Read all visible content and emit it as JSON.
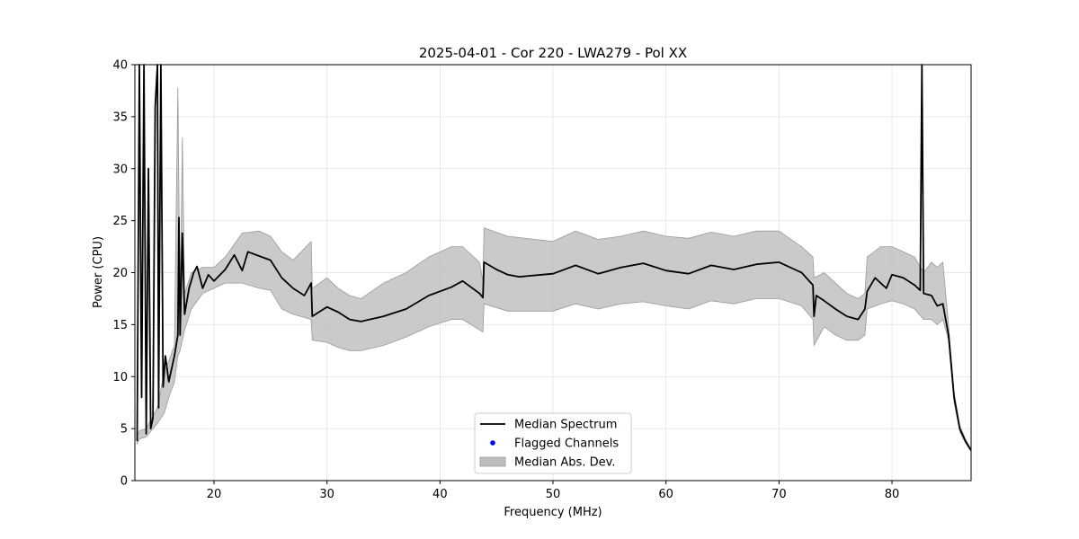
{
  "chart_data": {
    "type": "line",
    "title": "2025-04-01 - Cor 220 - LWA279 - Pol XX",
    "xlabel": "Frequency (MHz)",
    "ylabel": "Power (CPU)",
    "xlim": [
      13.0,
      87.0
    ],
    "ylim": [
      0,
      40
    ],
    "xticks": [
      20,
      30,
      40,
      50,
      60,
      70,
      80
    ],
    "yticks": [
      0,
      5,
      10,
      15,
      20,
      25,
      30,
      35,
      40
    ],
    "grid": true,
    "legend": {
      "position": "lower center",
      "entries": [
        {
          "label": "Median Spectrum",
          "kind": "line",
          "color": "#000000"
        },
        {
          "label": "Flagged Channels",
          "kind": "marker",
          "color": "#0000ff"
        },
        {
          "label": "Median Abs. Dev.",
          "kind": "band",
          "color": "#bdbdbd"
        }
      ]
    },
    "series": [
      {
        "name": "Median Spectrum",
        "color": "#000000",
        "points": [
          [
            13.2,
            3.8
          ],
          [
            13.4,
            40
          ],
          [
            13.6,
            8
          ],
          [
            13.8,
            40
          ],
          [
            14.0,
            4.5
          ],
          [
            14.2,
            30
          ],
          [
            14.4,
            5
          ],
          [
            14.6,
            6
          ],
          [
            14.8,
            36
          ],
          [
            15.0,
            40
          ],
          [
            15.1,
            7
          ],
          [
            15.3,
            40
          ],
          [
            15.5,
            9
          ],
          [
            15.7,
            12
          ],
          [
            16.0,
            9.5
          ],
          [
            16.5,
            12
          ],
          [
            16.8,
            14
          ],
          [
            16.9,
            25.3
          ],
          [
            17.0,
            14
          ],
          [
            17.2,
            23.8
          ],
          [
            17.4,
            16
          ],
          [
            17.8,
            18.5
          ],
          [
            18.2,
            20
          ],
          [
            18.5,
            20.6
          ],
          [
            19.0,
            18.5
          ],
          [
            19.5,
            19.8
          ],
          [
            20.0,
            19.2
          ],
          [
            21.0,
            20.3
          ],
          [
            21.8,
            21.7
          ],
          [
            22.5,
            20.2
          ],
          [
            23.0,
            22.0
          ],
          [
            24.0,
            21.6
          ],
          [
            25.0,
            21.2
          ],
          [
            26.0,
            19.5
          ],
          [
            27.0,
            18.5
          ],
          [
            28.0,
            17.8
          ],
          [
            28.6,
            19.0
          ],
          [
            28.7,
            15.8
          ],
          [
            30.0,
            16.7
          ],
          [
            31.0,
            16.2
          ],
          [
            32.0,
            15.5
          ],
          [
            33.0,
            15.3
          ],
          [
            35.0,
            15.8
          ],
          [
            37.0,
            16.5
          ],
          [
            39.0,
            17.8
          ],
          [
            41.0,
            18.6
          ],
          [
            42.0,
            19.2
          ],
          [
            43.5,
            18.0
          ],
          [
            43.8,
            17.6
          ],
          [
            43.9,
            21.0
          ],
          [
            45.0,
            20.3
          ],
          [
            46.0,
            19.8
          ],
          [
            47.0,
            19.6
          ],
          [
            50.0,
            19.9
          ],
          [
            52.0,
            20.7
          ],
          [
            54.0,
            19.9
          ],
          [
            56.0,
            20.5
          ],
          [
            58.0,
            20.9
          ],
          [
            60.0,
            20.2
          ],
          [
            62.0,
            19.9
          ],
          [
            64.0,
            20.7
          ],
          [
            66.0,
            20.3
          ],
          [
            68.0,
            20.8
          ],
          [
            70.0,
            21.0
          ],
          [
            72.0,
            20.0
          ],
          [
            73.0,
            18.8
          ],
          [
            73.1,
            15.8
          ],
          [
            73.3,
            17.8
          ],
          [
            74.0,
            17.3
          ],
          [
            75.0,
            16.5
          ],
          [
            76.0,
            15.8
          ],
          [
            77.0,
            15.5
          ],
          [
            77.6,
            16.5
          ],
          [
            77.8,
            18.2
          ],
          [
            78.5,
            19.5
          ],
          [
            79.5,
            18.5
          ],
          [
            80.0,
            19.8
          ],
          [
            81.0,
            19.5
          ],
          [
            82.0,
            18.8
          ],
          [
            82.5,
            18.3
          ],
          [
            82.65,
            40
          ],
          [
            82.8,
            18.0
          ],
          [
            83.5,
            17.8
          ],
          [
            84.0,
            16.8
          ],
          [
            84.5,
            17.0
          ],
          [
            85.0,
            14.0
          ],
          [
            85.5,
            8.0
          ],
          [
            86.0,
            5.0
          ],
          [
            86.5,
            3.8
          ],
          [
            87.0,
            2.9
          ]
        ]
      }
    ],
    "band": {
      "name": "Median Abs. Dev.",
      "color": "#bdbdbd",
      "points": [
        [
          13.2,
          3.5,
          4.2
        ],
        [
          13.4,
          4.0,
          4.8
        ],
        [
          14.0,
          4.2,
          5.0
        ],
        [
          15.0,
          5.5,
          7.0
        ],
        [
          15.6,
          6.5,
          10.5
        ],
        [
          16.0,
          8.0,
          11.5
        ],
        [
          16.5,
          9.5,
          13.0
        ],
        [
          16.8,
          12.0,
          37.8
        ],
        [
          17.0,
          12.5,
          16.0
        ],
        [
          17.2,
          13.5,
          33.0
        ],
        [
          17.4,
          14.5,
          18.0
        ],
        [
          18.0,
          16.5,
          20.0
        ],
        [
          19.0,
          18.0,
          20.5
        ],
        [
          20.0,
          18.5,
          20.5
        ],
        [
          21.0,
          19.0,
          21.5
        ],
        [
          22.5,
          19.0,
          23.8
        ],
        [
          24.0,
          18.5,
          24.0
        ],
        [
          25.0,
          18.3,
          23.5
        ],
        [
          26.0,
          16.5,
          22.0
        ],
        [
          27.0,
          16.0,
          21.2
        ],
        [
          28.6,
          15.5,
          23.0
        ],
        [
          28.7,
          13.5,
          18.5
        ],
        [
          30.0,
          13.3,
          19.5
        ],
        [
          31.0,
          12.8,
          18.5
        ],
        [
          32.0,
          12.5,
          17.8
        ],
        [
          33.0,
          12.5,
          17.5
        ],
        [
          35.0,
          13.0,
          19.0
        ],
        [
          37.0,
          13.8,
          20.0
        ],
        [
          39.0,
          14.8,
          21.5
        ],
        [
          41.0,
          15.5,
          22.5
        ],
        [
          42.0,
          15.5,
          22.5
        ],
        [
          43.5,
          14.5,
          21.0
        ],
        [
          43.8,
          14.3,
          19.2
        ],
        [
          43.9,
          17.0,
          24.3
        ],
        [
          46.0,
          16.3,
          23.5
        ],
        [
          50.0,
          16.3,
          23.0
        ],
        [
          52.0,
          17.0,
          24.0
        ],
        [
          54.0,
          16.5,
          23.2
        ],
        [
          56.0,
          17.0,
          23.5
        ],
        [
          58.0,
          17.2,
          24.0
        ],
        [
          60.0,
          16.8,
          23.5
        ],
        [
          62.0,
          16.5,
          23.3
        ],
        [
          64.0,
          17.3,
          23.9
        ],
        [
          66.0,
          17.0,
          23.5
        ],
        [
          68.0,
          17.5,
          24.0
        ],
        [
          70.0,
          17.5,
          24.0
        ],
        [
          72.0,
          16.8,
          22.5
        ],
        [
          73.0,
          15.5,
          21.5
        ],
        [
          73.1,
          13.0,
          19.5
        ],
        [
          74.0,
          14.8,
          20.0
        ],
        [
          75.0,
          14.0,
          19.0
        ],
        [
          76.0,
          13.5,
          18.0
        ],
        [
          77.0,
          13.5,
          17.5
        ],
        [
          77.6,
          14.0,
          18.0
        ],
        [
          77.8,
          16.5,
          21.5
        ],
        [
          79.0,
          17.0,
          22.5
        ],
        [
          80.0,
          17.3,
          22.5
        ],
        [
          81.0,
          17.0,
          22.0
        ],
        [
          82.0,
          16.5,
          21.5
        ],
        [
          82.8,
          15.5,
          20.0
        ],
        [
          83.5,
          15.5,
          21.0
        ],
        [
          84.0,
          15.0,
          20.5
        ],
        [
          84.5,
          15.5,
          21.0
        ],
        [
          85.0,
          13.5,
          15.0
        ],
        [
          85.5,
          7.5,
          8.5
        ],
        [
          86.0,
          4.7,
          5.3
        ],
        [
          86.5,
          3.6,
          4.0
        ],
        [
          87.0,
          2.8,
          3.0
        ]
      ]
    }
  }
}
